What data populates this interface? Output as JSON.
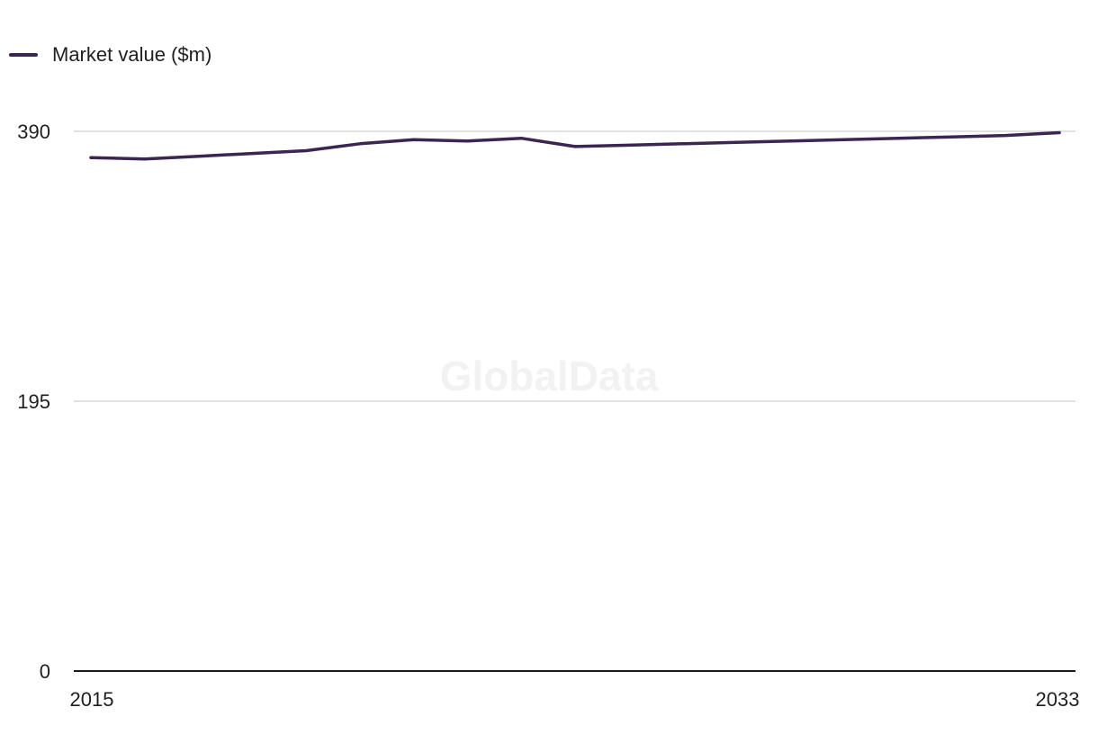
{
  "watermark": "GlobalData",
  "chart_data": {
    "type": "line",
    "x": [
      2015,
      2016,
      2017,
      2018,
      2019,
      2020,
      2021,
      2022,
      2023,
      2024,
      2025,
      2026,
      2027,
      2028,
      2029,
      2030,
      2031,
      2032,
      2033
    ],
    "series": [
      {
        "name": "Market value ($m)",
        "color": "#3a2553",
        "values": [
          371,
          370,
          372,
          374,
          376,
          381,
          384,
          383,
          385,
          379,
          380,
          381,
          382,
          383,
          384,
          385,
          386,
          387,
          389
        ]
      }
    ],
    "ylim": [
      0,
      390
    ],
    "yticks": [
      "0",
      "195",
      "390"
    ],
    "xticks": [
      "2015",
      "2033"
    ],
    "grid": true,
    "legend": "top-left"
  }
}
